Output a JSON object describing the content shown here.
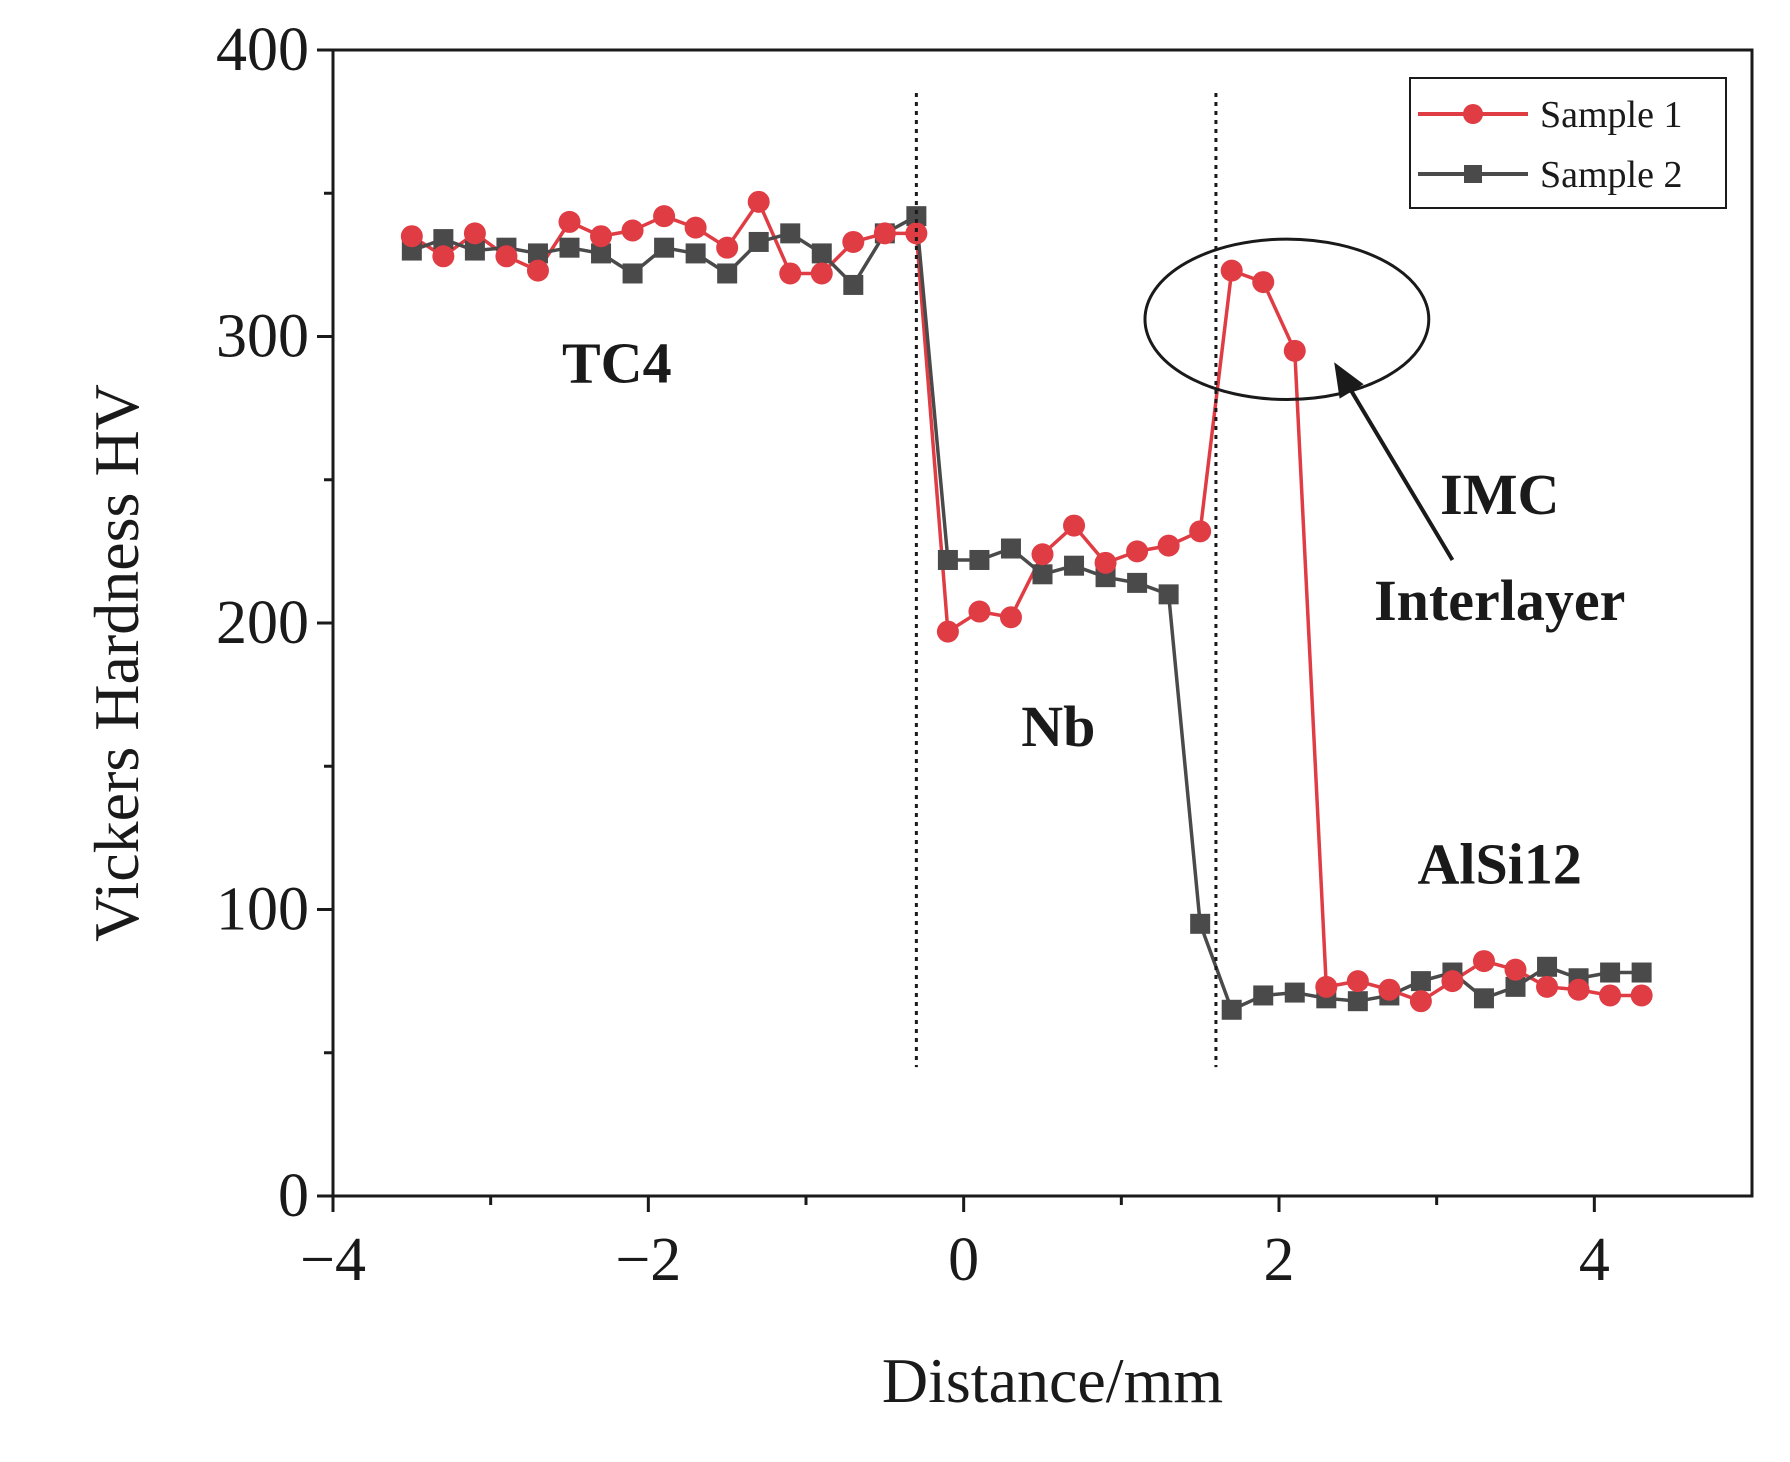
{
  "chart_data": {
    "type": "line",
    "title": "",
    "xlabel": "Distance/mm",
    "ylabel": "Vickers Hardness HV",
    "xlim": [
      -4,
      5
    ],
    "ylim": [
      0,
      400
    ],
    "xticks": [
      -4,
      -2,
      0,
      2,
      4
    ],
    "xtick_labels": [
      "−4",
      "−2",
      "0",
      "2",
      "4"
    ],
    "yticks": [
      0,
      100,
      200,
      300,
      400
    ],
    "ytick_labels": [
      "0",
      "100",
      "200",
      "300",
      "400"
    ],
    "grid": false,
    "legend_position": "top-right",
    "boundaries": [
      -0.3,
      1.6
    ],
    "series": [
      {
        "name": "Sample 1",
        "color": "#e03c44",
        "marker": "circle",
        "x": [
          -3.5,
          -3.3,
          -3.1,
          -2.9,
          -2.7,
          -2.5,
          -2.3,
          -2.1,
          -1.9,
          -1.7,
          -1.5,
          -1.3,
          -1.1,
          -0.9,
          -0.7,
          -0.5,
          -0.3,
          -0.1,
          0.1,
          0.3,
          0.5,
          0.7,
          0.9,
          1.1,
          1.3,
          1.5,
          1.7,
          1.9,
          2.1,
          2.3,
          2.5,
          2.7,
          2.9,
          3.1,
          3.3,
          3.5,
          3.7,
          3.9,
          4.1,
          4.3
        ],
        "y": [
          335,
          328,
          336,
          328,
          323,
          340,
          335,
          337,
          342,
          338,
          331,
          347,
          322,
          322,
          333,
          336,
          336,
          197,
          204,
          202,
          224,
          234,
          221,
          225,
          227,
          232,
          323,
          319,
          295,
          73,
          75,
          72,
          68,
          75,
          82,
          79,
          73,
          72,
          70,
          70
        ]
      },
      {
        "name": "Sample 2",
        "color": "#4a4a4a",
        "marker": "square",
        "x": [
          -3.5,
          -3.3,
          -3.1,
          -2.9,
          -2.7,
          -2.5,
          -2.3,
          -2.1,
          -1.9,
          -1.7,
          -1.5,
          -1.3,
          -1.1,
          -0.9,
          -0.7,
          -0.5,
          -0.3,
          -0.1,
          0.1,
          0.3,
          0.5,
          0.7,
          0.9,
          1.1,
          1.3,
          1.5,
          1.7,
          1.9,
          2.1,
          2.3,
          2.5,
          2.7,
          2.9,
          3.1,
          3.3,
          3.5,
          3.7,
          3.9,
          4.1,
          4.3
        ],
        "y": [
          330,
          334,
          330,
          331,
          329,
          331,
          329,
          322,
          331,
          329,
          322,
          333,
          336,
          329,
          318,
          336,
          342,
          222,
          222,
          226,
          217,
          220,
          216,
          214,
          210,
          95,
          65,
          70,
          71,
          69,
          68,
          70,
          75,
          78,
          69,
          73,
          80,
          76,
          78,
          78
        ]
      }
    ],
    "annotations": [
      {
        "text": "TC4",
        "x": -2.2,
        "y": 284
      },
      {
        "text": "Nb",
        "x": 0.6,
        "y": 157
      },
      {
        "text": "AlSi12",
        "x": 3.4,
        "y": 109
      },
      {
        "text": "IMC",
        "x": 3.4,
        "y": 238
      },
      {
        "text": "Interlayer",
        "x": 3.4,
        "y": 201
      }
    ],
    "ellipse_annotation": {
      "x_center": 2.05,
      "y_center": 306,
      "x_radius": 0.9,
      "y_radius": 28
    },
    "arrow_annotation": {
      "from": [
        3.1,
        222
      ],
      "to": [
        2.35,
        291
      ]
    }
  }
}
